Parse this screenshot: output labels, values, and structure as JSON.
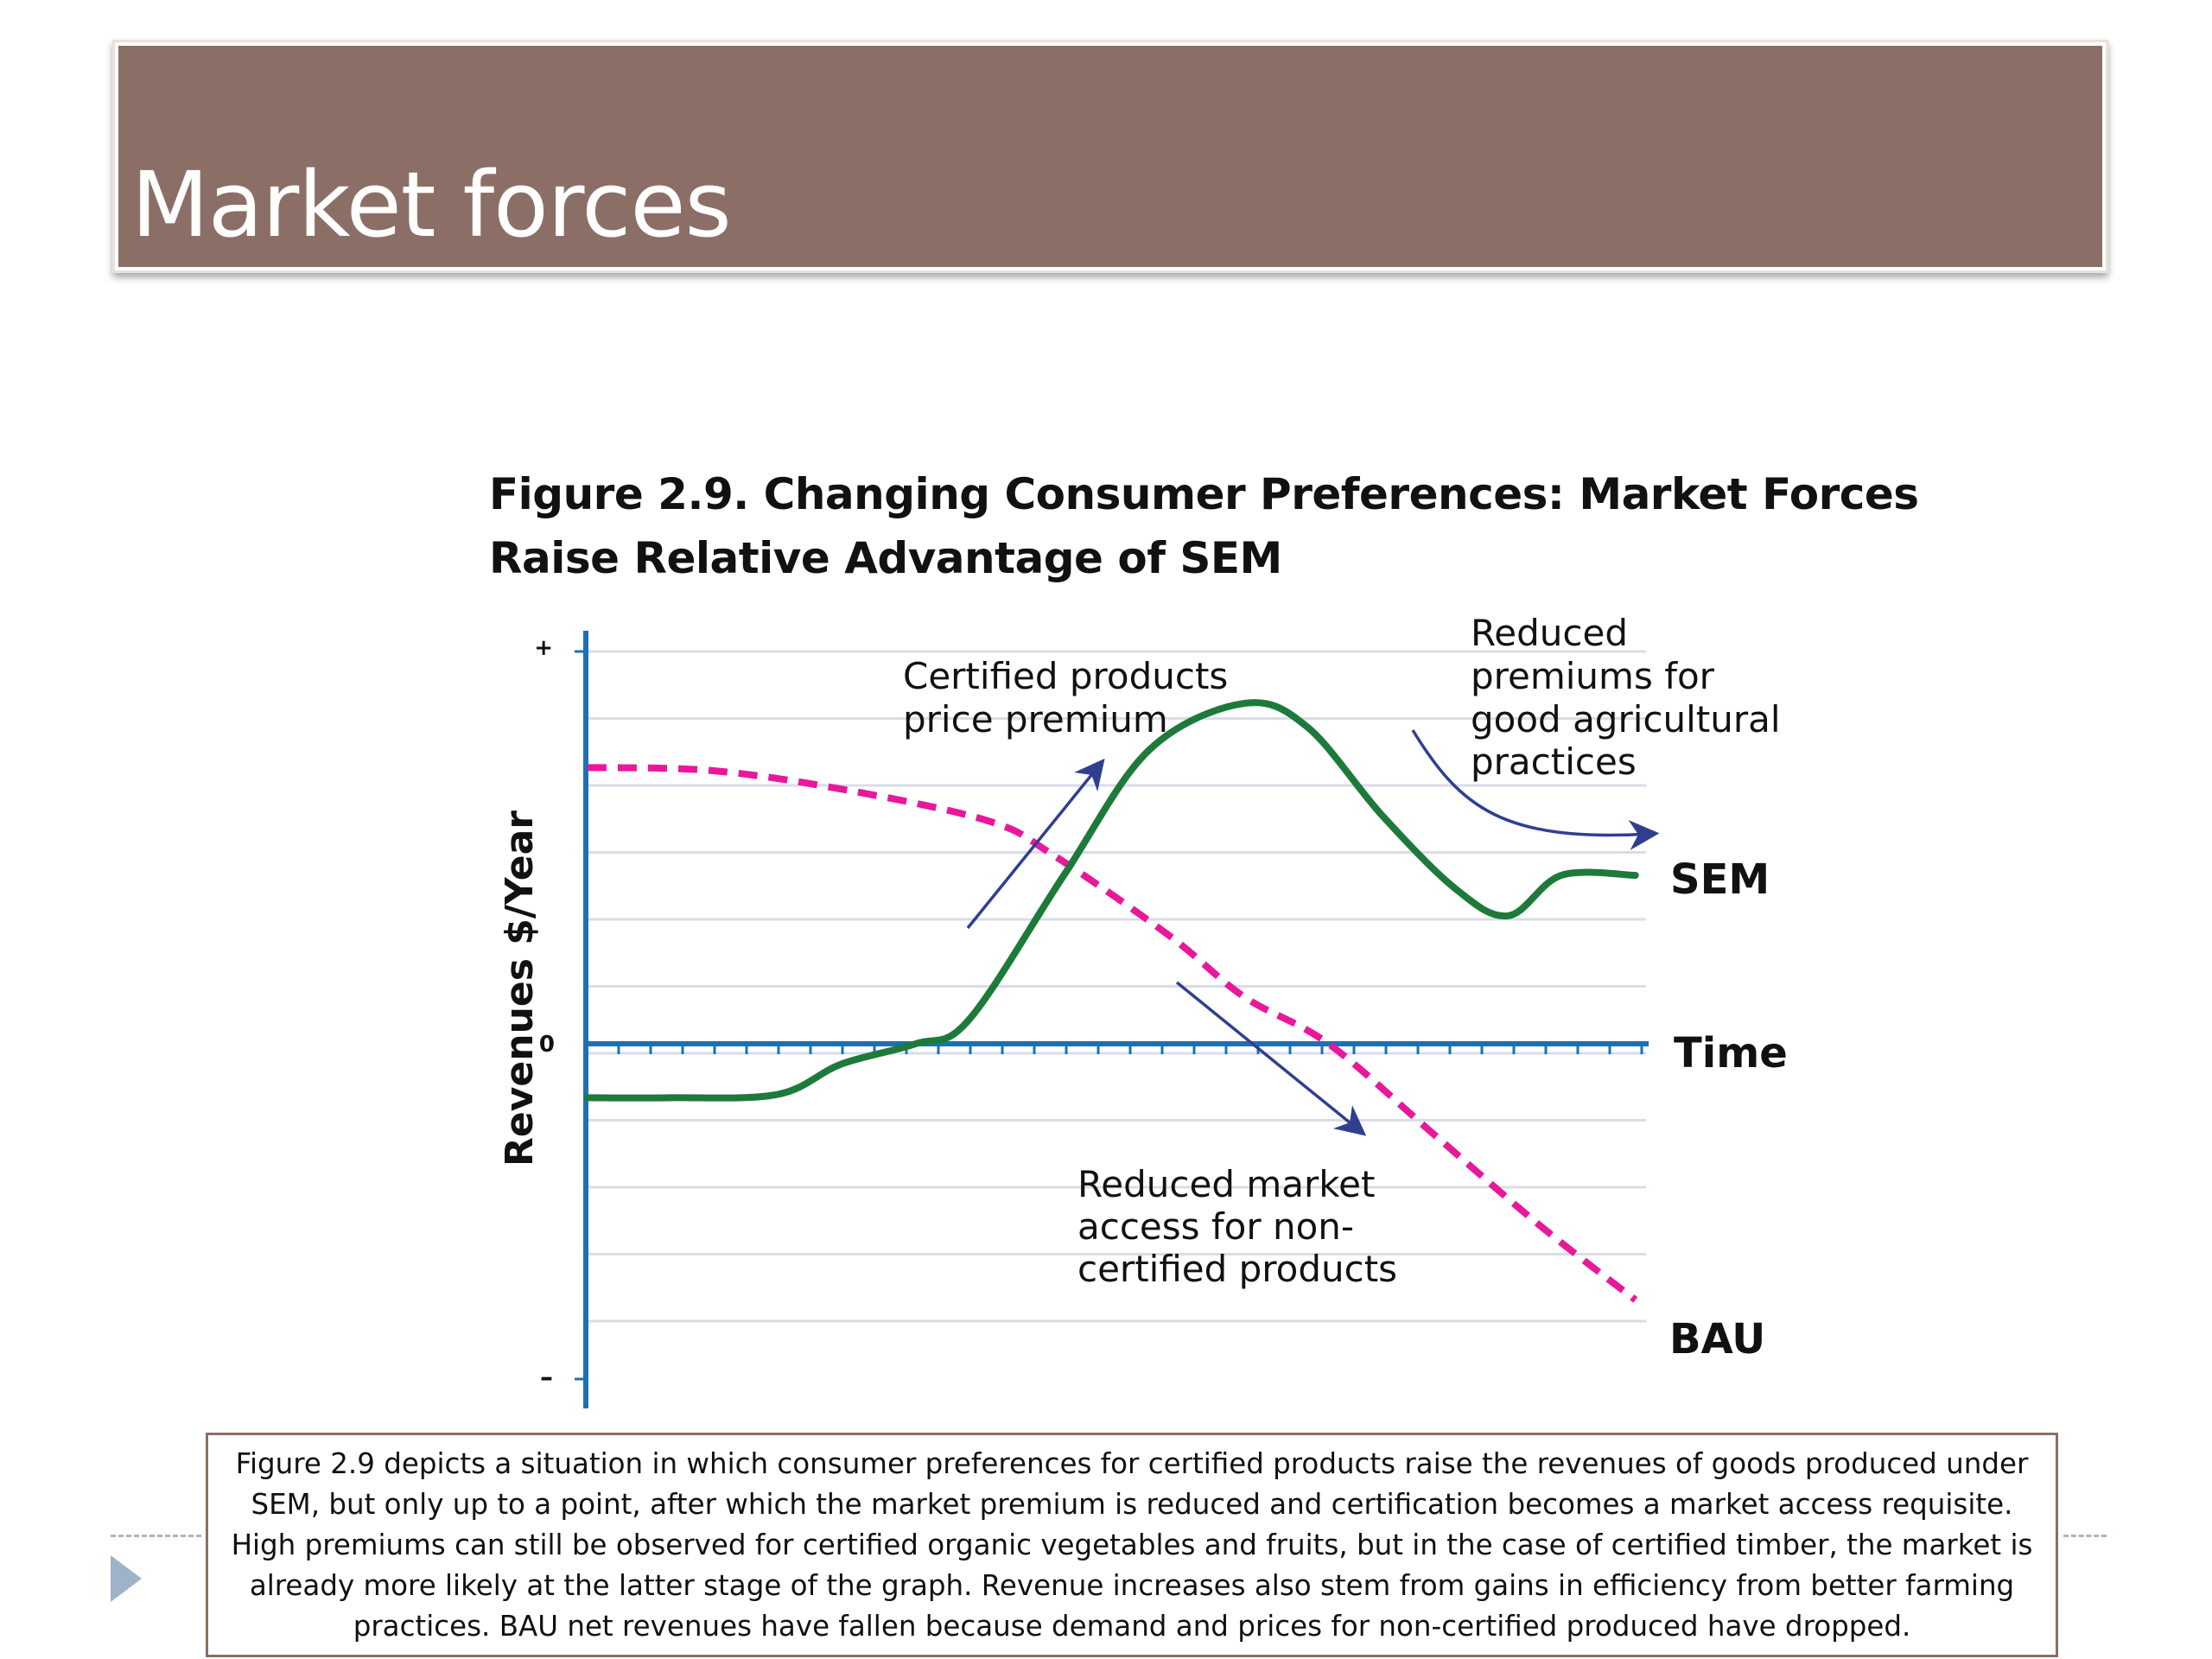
{
  "slide": {
    "title": "Market forces"
  },
  "figure": {
    "title_line1": "Figure 2.9. Changing Consumer Preferences: Market Forces",
    "title_line2": "Raise Relative Advantage of SEM"
  },
  "caption": {
    "text": "Figure 2.9 depicts a situation in which consumer preferences for certified products raise the revenues of goods produced under SEM, but only up to a point, after which the market premium is reduced and certification becomes a market access requisite. High premiums can still be observed for certified organic vegetables and fruits, but in the case of certified timber, the market is already more likely at the latter stage of the graph. Revenue increases also stem from gains in efficiency from better farming practices. BAU net revenues have fallen because demand and prices for non-certified produced have dropped."
  },
  "colors": {
    "sem": "#1e7a3a",
    "bau": "#e8189a",
    "axis": "#1f6fb5",
    "arrow": "#2f3f8f",
    "grid": "#dcdce8",
    "title_bar": "#8b6f67"
  },
  "chart_data": {
    "type": "line",
    "title": "Figure 2.9. Changing Consumer Preferences: Market Forces Raise Relative Advantage of SEM",
    "xlabel": "Time",
    "ylabel": "Revenues  $/Year",
    "ytick_labels": {
      "top": "+",
      "zero": "0",
      "bottom": "–"
    },
    "xlim": [
      0,
      100
    ],
    "ylim": [
      -10,
      12
    ],
    "grid": true,
    "series": [
      {
        "name": "SEM",
        "style": "solid",
        "x": [
          0,
          8,
          18,
          24,
          31,
          36,
          45,
          53,
          62,
          68,
          75,
          82,
          87,
          92,
          99
        ],
        "y": [
          -1.6,
          -1.6,
          -1.5,
          -0.6,
          0.0,
          0.7,
          5.0,
          8.7,
          10.1,
          9.4,
          6.8,
          4.6,
          3.8,
          5.0,
          5.0
        ]
      },
      {
        "name": "BAU",
        "style": "dashed",
        "x": [
          0,
          12,
          25,
          38,
          44,
          55,
          62,
          70,
          80,
          90,
          99
        ],
        "y": [
          8.2,
          8.1,
          7.5,
          6.6,
          5.6,
          3.2,
          1.4,
          0.0,
          -2.7,
          -5.4,
          -7.6
        ]
      }
    ],
    "annotations": [
      {
        "lines": [
          "Certified products",
          "price premium"
        ]
      },
      {
        "lines": [
          "Reduced",
          "premiums for",
          "good agricultural",
          "practices"
        ]
      },
      {
        "lines": [
          "Reduced market",
          "access for non-",
          "certified products"
        ]
      }
    ]
  }
}
